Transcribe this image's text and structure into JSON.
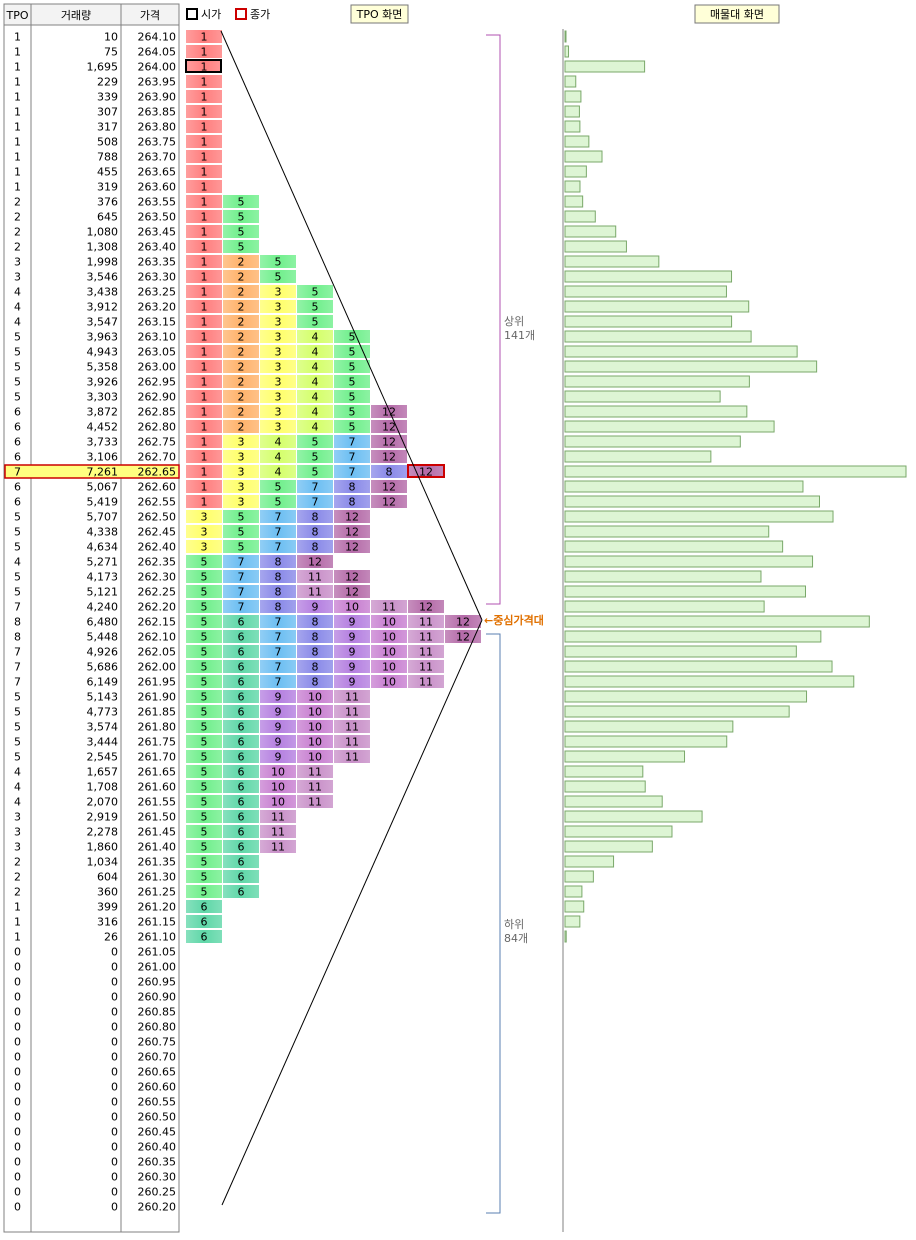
{
  "table": {
    "headers": {
      "tpo": "TPO",
      "volume": "거래량",
      "price": "가격"
    },
    "rows": [
      {
        "tpo": "1",
        "volume": "10",
        "price": "264.10"
      },
      {
        "tpo": "1",
        "volume": "75",
        "price": "264.05"
      },
      {
        "tpo": "1",
        "volume": "1,695",
        "price": "264.00"
      },
      {
        "tpo": "1",
        "volume": "229",
        "price": "263.95"
      },
      {
        "tpo": "1",
        "volume": "339",
        "price": "263.90"
      },
      {
        "tpo": "1",
        "volume": "307",
        "price": "263.85"
      },
      {
        "tpo": "1",
        "volume": "317",
        "price": "263.80"
      },
      {
        "tpo": "1",
        "volume": "508",
        "price": "263.75"
      },
      {
        "tpo": "1",
        "volume": "788",
        "price": "263.70"
      },
      {
        "tpo": "1",
        "volume": "455",
        "price": "263.65"
      },
      {
        "tpo": "1",
        "volume": "319",
        "price": "263.60"
      },
      {
        "tpo": "2",
        "volume": "376",
        "price": "263.55"
      },
      {
        "tpo": "2",
        "volume": "645",
        "price": "263.50"
      },
      {
        "tpo": "2",
        "volume": "1,080",
        "price": "263.45"
      },
      {
        "tpo": "2",
        "volume": "1,308",
        "price": "263.40"
      },
      {
        "tpo": "3",
        "volume": "1,998",
        "price": "263.35"
      },
      {
        "tpo": "3",
        "volume": "3,546",
        "price": "263.30"
      },
      {
        "tpo": "4",
        "volume": "3,438",
        "price": "263.25"
      },
      {
        "tpo": "4",
        "volume": "3,912",
        "price": "263.20"
      },
      {
        "tpo": "4",
        "volume": "3,547",
        "price": "263.15"
      },
      {
        "tpo": "5",
        "volume": "3,963",
        "price": "263.10"
      },
      {
        "tpo": "5",
        "volume": "4,943",
        "price": "263.05"
      },
      {
        "tpo": "5",
        "volume": "5,358",
        "price": "263.00"
      },
      {
        "tpo": "5",
        "volume": "3,926",
        "price": "262.95"
      },
      {
        "tpo": "5",
        "volume": "3,303",
        "price": "262.90"
      },
      {
        "tpo": "6",
        "volume": "3,872",
        "price": "262.85"
      },
      {
        "tpo": "6",
        "volume": "4,452",
        "price": "262.80"
      },
      {
        "tpo": "6",
        "volume": "3,733",
        "price": "262.75"
      },
      {
        "tpo": "6",
        "volume": "3,106",
        "price": "262.70"
      },
      {
        "tpo": "7",
        "volume": "7,261",
        "price": "262.65"
      },
      {
        "tpo": "6",
        "volume": "5,067",
        "price": "262.60"
      },
      {
        "tpo": "6",
        "volume": "5,419",
        "price": "262.55"
      },
      {
        "tpo": "5",
        "volume": "5,707",
        "price": "262.50"
      },
      {
        "tpo": "5",
        "volume": "4,338",
        "price": "262.45"
      },
      {
        "tpo": "5",
        "volume": "4,634",
        "price": "262.40"
      },
      {
        "tpo": "4",
        "volume": "5,271",
        "price": "262.35"
      },
      {
        "tpo": "5",
        "volume": "4,173",
        "price": "262.30"
      },
      {
        "tpo": "5",
        "volume": "5,121",
        "price": "262.25"
      },
      {
        "tpo": "7",
        "volume": "4,240",
        "price": "262.20"
      },
      {
        "tpo": "8",
        "volume": "6,480",
        "price": "262.15"
      },
      {
        "tpo": "8",
        "volume": "5,448",
        "price": "262.10"
      },
      {
        "tpo": "7",
        "volume": "4,926",
        "price": "262.05"
      },
      {
        "tpo": "7",
        "volume": "5,686",
        "price": "262.00"
      },
      {
        "tpo": "7",
        "volume": "6,149",
        "price": "261.95"
      },
      {
        "tpo": "5",
        "volume": "5,143",
        "price": "261.90"
      },
      {
        "tpo": "5",
        "volume": "4,773",
        "price": "261.85"
      },
      {
        "tpo": "5",
        "volume": "3,574",
        "price": "261.80"
      },
      {
        "tpo": "5",
        "volume": "3,444",
        "price": "261.75"
      },
      {
        "tpo": "5",
        "volume": "2,545",
        "price": "261.70"
      },
      {
        "tpo": "4",
        "volume": "1,657",
        "price": "261.65"
      },
      {
        "tpo": "4",
        "volume": "1,708",
        "price": "261.60"
      },
      {
        "tpo": "4",
        "volume": "2,070",
        "price": "261.55"
      },
      {
        "tpo": "3",
        "volume": "2,919",
        "price": "261.50"
      },
      {
        "tpo": "3",
        "volume": "2,278",
        "price": "261.45"
      },
      {
        "tpo": "3",
        "volume": "1,860",
        "price": "261.40"
      },
      {
        "tpo": "2",
        "volume": "1,034",
        "price": "261.35"
      },
      {
        "tpo": "2",
        "volume": "604",
        "price": "261.30"
      },
      {
        "tpo": "2",
        "volume": "360",
        "price": "261.25"
      },
      {
        "tpo": "1",
        "volume": "399",
        "price": "261.20"
      },
      {
        "tpo": "1",
        "volume": "316",
        "price": "261.15"
      },
      {
        "tpo": "1",
        "volume": "26",
        "price": "261.10"
      },
      {
        "tpo": "0",
        "volume": "0",
        "price": "261.05"
      },
      {
        "tpo": "0",
        "volume": "0",
        "price": "261.00"
      },
      {
        "tpo": "0",
        "volume": "0",
        "price": "260.95"
      },
      {
        "tpo": "0",
        "volume": "0",
        "price": "260.90"
      },
      {
        "tpo": "0",
        "volume": "0",
        "price": "260.85"
      },
      {
        "tpo": "0",
        "volume": "0",
        "price": "260.80"
      },
      {
        "tpo": "0",
        "volume": "0",
        "price": "260.75"
      },
      {
        "tpo": "0",
        "volume": "0",
        "price": "260.70"
      },
      {
        "tpo": "0",
        "volume": "0",
        "price": "260.65"
      },
      {
        "tpo": "0",
        "volume": "0",
        "price": "260.60"
      },
      {
        "tpo": "0",
        "volume": "0",
        "price": "260.55"
      },
      {
        "tpo": "0",
        "volume": "0",
        "price": "260.50"
      },
      {
        "tpo": "0",
        "volume": "0",
        "price": "260.45"
      },
      {
        "tpo": "0",
        "volume": "0",
        "price": "260.40"
      },
      {
        "tpo": "0",
        "volume": "0",
        "price": "260.35"
      },
      {
        "tpo": "0",
        "volume": "0",
        "price": "260.30"
      },
      {
        "tpo": "0",
        "volume": "0",
        "price": "260.25"
      },
      {
        "tpo": "0",
        "volume": "0",
        "price": "260.20"
      }
    ]
  },
  "legend": {
    "open_label": "시가",
    "close_label": "종가"
  },
  "buttons": {
    "tpo_screen": "TPO 화면",
    "volume_profile_screen": "매물대 화면"
  },
  "annotations": {
    "upper_label": "상위",
    "upper_count": "141개",
    "lower_label": "하위",
    "lower_count": "84개",
    "center_label": "←중심가격대"
  },
  "colors": {
    "open_marker": "#000000",
    "close_marker": "#cc0000",
    "highlight_row": "#ffff80",
    "bracket": "#b050b0",
    "center_label": "#e07000",
    "volume_bar_fill": "#ddf5d4",
    "volume_bar_stroke": "#7aa86a",
    "period_colors": {
      "1": "#ff7e7e",
      "2": "#ffb26a",
      "3": "#ffff6a",
      "4": "#d4ff6a",
      "5": "#70ef8c",
      "6": "#5fd7a8",
      "7": "#6cbef2",
      "8": "#8989e8",
      "9": "#b47fe0",
      "10": "#c77ed0",
      "11": "#c88fc8",
      "12": "#b46aa8"
    }
  },
  "chart_data": {
    "type": "bar",
    "tpo_letters": [
      [
        "1"
      ],
      [
        "1"
      ],
      [
        "1"
      ],
      [
        "1"
      ],
      [
        "1"
      ],
      [
        "1"
      ],
      [
        "1"
      ],
      [
        "1"
      ],
      [
        "1"
      ],
      [
        "1"
      ],
      [
        "1"
      ],
      [
        "1",
        "5"
      ],
      [
        "1",
        "5"
      ],
      [
        "1",
        "5"
      ],
      [
        "1",
        "5"
      ],
      [
        "1",
        "2",
        "5"
      ],
      [
        "1",
        "2",
        "5"
      ],
      [
        "1",
        "2",
        "3",
        "5"
      ],
      [
        "1",
        "2",
        "3",
        "5"
      ],
      [
        "1",
        "2",
        "3",
        "5"
      ],
      [
        "1",
        "2",
        "3",
        "4",
        "5"
      ],
      [
        "1",
        "2",
        "3",
        "4",
        "5"
      ],
      [
        "1",
        "2",
        "3",
        "4",
        "5"
      ],
      [
        "1",
        "2",
        "3",
        "4",
        "5"
      ],
      [
        "1",
        "2",
        "3",
        "4",
        "5"
      ],
      [
        "1",
        "2",
        "3",
        "4",
        "5",
        "12"
      ],
      [
        "1",
        "2",
        "3",
        "4",
        "5",
        "12"
      ],
      [
        "1",
        "3",
        "4",
        "5",
        "7",
        "12"
      ],
      [
        "1",
        "3",
        "4",
        "5",
        "7",
        "12"
      ],
      [
        "1",
        "3",
        "4",
        "5",
        "7",
        "8",
        "12"
      ],
      [
        "1",
        "3",
        "5",
        "7",
        "8",
        "12"
      ],
      [
        "1",
        "3",
        "5",
        "7",
        "8",
        "12"
      ],
      [
        "3",
        "5",
        "7",
        "8",
        "12"
      ],
      [
        "3",
        "5",
        "7",
        "8",
        "12"
      ],
      [
        "3",
        "5",
        "7",
        "8",
        "12"
      ],
      [
        "5",
        "7",
        "8",
        "12"
      ],
      [
        "5",
        "7",
        "8",
        "11",
        "12"
      ],
      [
        "5",
        "7",
        "8",
        "11",
        "12"
      ],
      [
        "5",
        "7",
        "8",
        "9",
        "10",
        "11",
        "12"
      ],
      [
        "5",
        "6",
        "7",
        "8",
        "9",
        "10",
        "11",
        "12"
      ],
      [
        "5",
        "6",
        "7",
        "8",
        "9",
        "10",
        "11",
        "12"
      ],
      [
        "5",
        "6",
        "7",
        "8",
        "9",
        "10",
        "11"
      ],
      [
        "5",
        "6",
        "7",
        "8",
        "9",
        "10",
        "11"
      ],
      [
        "5",
        "6",
        "7",
        "8",
        "9",
        "10",
        "11"
      ],
      [
        "5",
        "6",
        "9",
        "10",
        "11"
      ],
      [
        "5",
        "6",
        "9",
        "10",
        "11"
      ],
      [
        "5",
        "6",
        "9",
        "10",
        "11"
      ],
      [
        "5",
        "6",
        "9",
        "10",
        "11"
      ],
      [
        "5",
        "6",
        "9",
        "10",
        "11"
      ],
      [
        "5",
        "6",
        "10",
        "11"
      ],
      [
        "5",
        "6",
        "10",
        "11"
      ],
      [
        "5",
        "6",
        "10",
        "11"
      ],
      [
        "5",
        "6",
        "11"
      ],
      [
        "5",
        "6",
        "11"
      ],
      [
        "5",
        "6",
        "11"
      ],
      [
        "5",
        "6"
      ],
      [
        "5",
        "6"
      ],
      [
        "5",
        "6"
      ],
      [
        "6"
      ],
      [
        "6"
      ],
      [
        "6"
      ]
    ],
    "open_price": "264.00",
    "close_price": "262.65",
    "highest_volume_price": "262.65",
    "center_price": "262.15"
  }
}
